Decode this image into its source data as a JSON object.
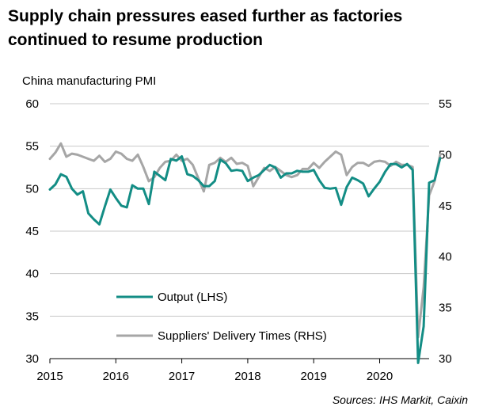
{
  "title": "Supply chain pressures eased further as factories continued to resume production",
  "subtitle": "China manufacturing PMI",
  "source": "Sources: IHS Markit, Caixin",
  "chart_data": {
    "type": "line",
    "x_ticks": [
      "2015",
      "2016",
      "2017",
      "2018",
      "2019",
      "2020"
    ],
    "y_left": {
      "lim": [
        30,
        60
      ],
      "ticks": [
        30,
        35,
        40,
        45,
        50,
        55,
        60
      ]
    },
    "y_right": {
      "lim": [
        30,
        55
      ],
      "ticks": [
        30,
        35,
        40,
        45,
        50,
        55
      ]
    },
    "grid": "horizontal",
    "legend_position": "bottom-center",
    "series": [
      {
        "name": "Output (LHS)",
        "axis": "left",
        "color": "#138d85",
        "start": "2015-01",
        "values": [
          49.9,
          50.5,
          51.7,
          51.4,
          50.0,
          49.3,
          49.7,
          47.1,
          46.4,
          45.8,
          47.9,
          49.9,
          48.9,
          48.0,
          47.8,
          50.4,
          50.0,
          50.0,
          48.2,
          52.0,
          51.5,
          51.0,
          53.5,
          53.3,
          53.8,
          51.7,
          51.5,
          51.0,
          50.3,
          50.3,
          50.9,
          53.4,
          53.0,
          52.1,
          52.2,
          52.1,
          50.9,
          51.3,
          51.6,
          52.2,
          52.8,
          52.5,
          51.3,
          51.8,
          51.8,
          52.1,
          52.0,
          52.0,
          52.2,
          51.0,
          50.1,
          50.0,
          50.1,
          48.1,
          50.2,
          51.3,
          51.0,
          50.6,
          49.1,
          50.0,
          50.8,
          52.0,
          52.9,
          52.9,
          52.5,
          52.9,
          52.2,
          29.5,
          33.8,
          50.7,
          51.0,
          53.6
        ]
      },
      {
        "name": "Suppliers' Delivery Times (RHS)",
        "axis": "right",
        "color": "#a6a6a6",
        "start": "2015-01",
        "values": [
          49.6,
          50.2,
          51.1,
          49.8,
          50.1,
          50.0,
          49.8,
          49.6,
          49.4,
          49.9,
          49.3,
          49.6,
          50.3,
          50.1,
          49.6,
          49.4,
          50.0,
          48.8,
          47.4,
          47.8,
          48.7,
          49.3,
          49.4,
          50.0,
          49.4,
          49.6,
          49.0,
          47.7,
          46.4,
          49.0,
          49.2,
          49.7,
          49.3,
          49.7,
          49.1,
          49.2,
          48.9,
          46.9,
          47.8,
          48.7,
          48.4,
          48.8,
          48.4,
          48.0,
          47.8,
          48.0,
          48.6,
          48.6,
          49.2,
          48.7,
          49.3,
          49.8,
          50.3,
          50.0,
          48.0,
          48.8,
          49.2,
          49.2,
          48.9,
          49.3,
          49.4,
          49.3,
          48.9,
          49.3,
          49.0,
          49.0,
          48.8,
          32.1,
          37.0,
          46.0,
          47.4,
          50.0
        ]
      }
    ]
  }
}
